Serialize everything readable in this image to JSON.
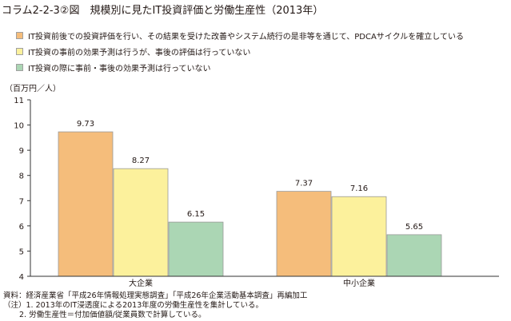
{
  "title": "コラム2-2-3②図　規模別に見たIT投資評価と労働生産性（2013年）",
  "unit_label": "（百万円／人）",
  "colors": {
    "series1": "#f5bd7b",
    "series2": "#fcf19c",
    "series3": "#abd6b4",
    "axis": "#333333",
    "gridline": "#bfbfbf"
  },
  "chart_data": {
    "type": "bar",
    "title": "規模別に見たIT投資評価と労働生産性（2013年）",
    "ylabel": "（百万円／人）",
    "xlabel": "",
    "ylim": [
      4,
      11
    ],
    "yticks": [
      4,
      5,
      6,
      7,
      8,
      9,
      10,
      11
    ],
    "categories": [
      "大企業",
      "中小企業"
    ],
    "series": [
      {
        "name": "IT投資前後での投資評価を行い、その結果を受けた改善やシステム続行の是非等を通じて、PDCAサイクルを確立している",
        "values": [
          9.73,
          7.37
        ],
        "labels": [
          "9.73",
          "7.37"
        ]
      },
      {
        "name": "IT投資の事前の効果予測は行うが、事後の評価は行っていない",
        "values": [
          8.27,
          7.16
        ],
        "labels": [
          "8.27",
          "7.16"
        ]
      },
      {
        "name": "IT投資の際に事前・事後の効果予測は行っていない",
        "values": [
          6.15,
          5.65
        ],
        "labels": [
          "6.15",
          "5.65"
        ]
      }
    ],
    "legend_position": "top-left"
  },
  "notes": {
    "source": "資料：経済産業省「平成26年情報処理実態調査」「平成26年企業活動基本調査」再編加工",
    "note1": "（注）1. 2013年のIT浸透度による2013年度の労働生産性を集計している。",
    "note2": "2. 労働生産性＝付加価値額/従業員数で計算している。"
  }
}
